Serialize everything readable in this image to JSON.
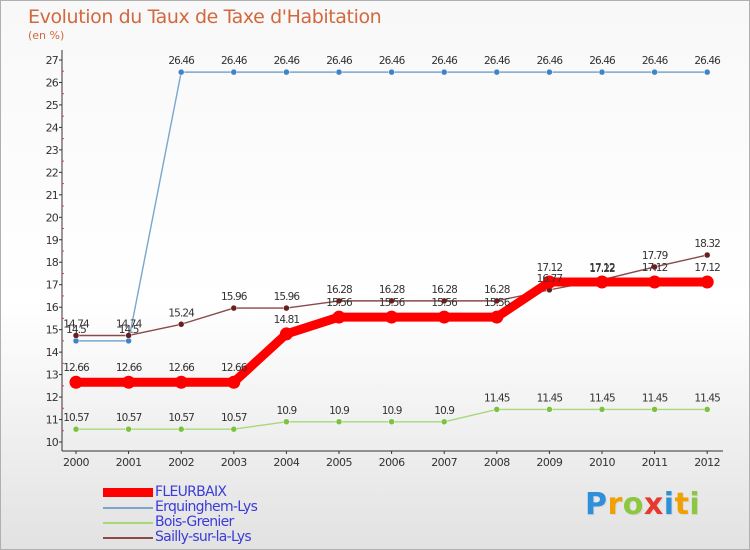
{
  "title": "Evolution du Taux de Taxe d'Habitation",
  "subtitle": "(en %)",
  "logo": {
    "text": "Proxiti",
    "letters": [
      {
        "ch": "P",
        "color": "#2f8fd8"
      },
      {
        "ch": "r",
        "color": "#f0a000"
      },
      {
        "ch": "o",
        "color": "#8dc63f"
      },
      {
        "ch": "x",
        "color": "#e8392e"
      },
      {
        "ch": "i",
        "color": "#2f8fd8"
      },
      {
        "ch": "t",
        "color": "#f0a000"
      },
      {
        "ch": "i",
        "color": "#8dc63f"
      }
    ]
  },
  "chart_data": {
    "type": "line",
    "title": "Evolution du Taux de Taxe d'Habitation",
    "ylabel": "(en %)",
    "xlabel": "",
    "x": [
      "2000",
      "2001",
      "2002",
      "2003",
      "2004",
      "2005",
      "2006",
      "2007",
      "2008",
      "2009",
      "2010",
      "2011",
      "2012"
    ],
    "ylim": [
      10,
      27
    ],
    "yticks": [
      "10",
      "11",
      "12",
      "13",
      "14",
      "15",
      "16",
      "17",
      "18",
      "19",
      "20",
      "21",
      "22",
      "23",
      "24",
      "25",
      "26",
      "27"
    ],
    "grid": false,
    "legend_position": "bottom-left",
    "series": [
      {
        "name": "FLEURBAIX",
        "color": "#ff0000",
        "marker_color": "#ff0000",
        "emphasis": "thick",
        "values": [
          12.66,
          12.66,
          12.66,
          12.66,
          14.81,
          15.56,
          15.56,
          15.56,
          15.56,
          17.12,
          17.12,
          17.12,
          17.12
        ],
        "labels": [
          "12.66",
          "12.66",
          "12.66",
          "12.66",
          "14.81",
          "15.56",
          "15.56",
          "15.56",
          "15.56",
          "17.12",
          "17.12",
          "17.12",
          "17.12"
        ]
      },
      {
        "name": "Erquinghem-Lys",
        "color": "#7aa6cc",
        "marker_color": "#3d85c6",
        "emphasis": "thin",
        "values": [
          14.5,
          14.5,
          26.46,
          26.46,
          26.46,
          26.46,
          26.46,
          26.46,
          26.46,
          26.46,
          26.46,
          26.46,
          26.46
        ],
        "labels": [
          "14.5",
          "14.5",
          "26.46",
          "26.46",
          "26.46",
          "26.46",
          "26.46",
          "26.46",
          "26.46",
          "26.46",
          "26.46",
          "26.46",
          "26.46"
        ]
      },
      {
        "name": "Bois-Grenier",
        "color": "#a8d878",
        "marker_color": "#7cc142",
        "emphasis": "thin",
        "values": [
          10.57,
          10.57,
          10.57,
          10.57,
          10.9,
          10.9,
          10.9,
          10.9,
          11.45,
          11.45,
          11.45,
          11.45,
          11.45
        ],
        "labels": [
          "10.57",
          "10.57",
          "10.57",
          "10.57",
          "10.9",
          "10.9",
          "10.9",
          "10.9",
          "11.45",
          "11.45",
          "11.45",
          "11.45",
          "11.45"
        ]
      },
      {
        "name": "Sailly-sur-la-Lys",
        "color": "#8a4a4a",
        "marker_color": "#6b1e1e",
        "emphasis": "thin",
        "values": [
          14.74,
          14.74,
          15.24,
          15.96,
          15.96,
          16.28,
          16.28,
          16.28,
          16.28,
          16.77,
          17.22,
          17.79,
          18.32
        ],
        "labels": [
          "14.74",
          "14.74",
          "15.24",
          "15.96",
          "15.96",
          "16.28",
          "16.28",
          "16.28",
          "16.28",
          "16.77",
          "17.22",
          "17.79",
          "18.32"
        ]
      }
    ]
  }
}
